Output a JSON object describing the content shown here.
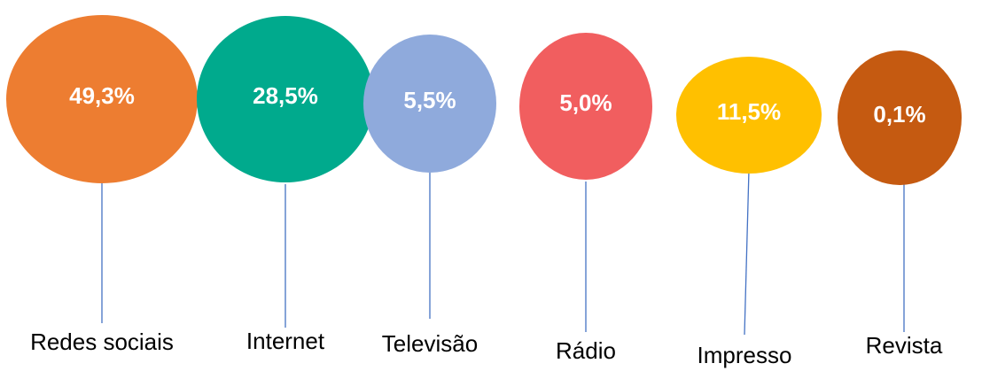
{
  "chart_data": {
    "type": "bubble",
    "categories": [
      "Redes sociais",
      "Internet",
      "Televisão",
      "Rádio",
      "Impresso",
      "Revista"
    ],
    "values": [
      49.3,
      28.5,
      5.5,
      5.0,
      11.5,
      0.1
    ],
    "value_labels": [
      "49,3%",
      "28,5%",
      "5,5%",
      "5,0%",
      "11,5%",
      "0,1%"
    ],
    "colors": [
      "#ED7D31",
      "#00AA8D",
      "#8FAADC",
      "#F15E5F",
      "#FFC000",
      "#C55A11"
    ],
    "line_color": "#4472C4"
  }
}
